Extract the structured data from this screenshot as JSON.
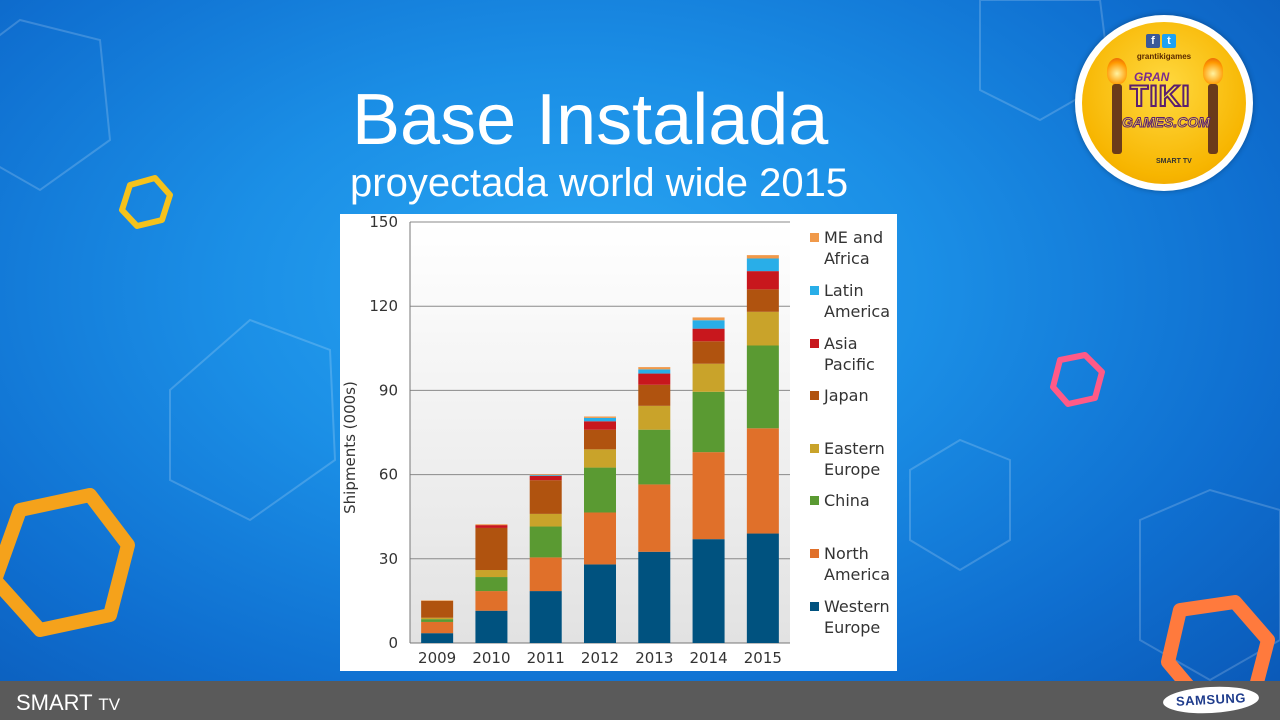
{
  "slide": {
    "title": "Base Instalada",
    "subtitle": "proyectada world wide 2015"
  },
  "badge": {
    "social_fb": "f",
    "social_tw": "t",
    "handle": "grantikigames",
    "logo_line1": "GRAN",
    "logo_line2": "TIKI",
    "logo_line3": "GAMES.COM",
    "platform_text": "SMART TV"
  },
  "footer": {
    "brand_left": "SMART",
    "brand_left_suffix": "TV",
    "brand_right": "SAMSUNG"
  },
  "colors": {
    "western_europe": "#00527f",
    "north_america": "#e0702a",
    "china": "#5a9a32",
    "eastern_europe": "#c9a32a",
    "japan": "#b0530f",
    "asia_pacific": "#c8171d",
    "latin_america": "#29aee8",
    "me_africa": "#f0994a"
  },
  "chart_data": {
    "type": "bar",
    "stacked": true,
    "categories": [
      "2009",
      "2010",
      "2011",
      "2012",
      "2013",
      "2014",
      "2015"
    ],
    "ylabel": "Shipments (000s)",
    "ylim": [
      0,
      150
    ],
    "yticks": [
      0,
      30,
      60,
      90,
      120,
      150
    ],
    "grid": true,
    "legend_position": "right",
    "series": [
      {
        "name": "Western Europe",
        "color_key": "western_europe",
        "values": [
          3.5,
          11.5,
          18.5,
          28,
          32.5,
          37,
          39
        ]
      },
      {
        "name": "North America",
        "color_key": "north_america",
        "values": [
          4,
          7,
          12,
          18.5,
          24,
          31,
          37.5
        ]
      },
      {
        "name": "China",
        "color_key": "china",
        "values": [
          1,
          5,
          11,
          16,
          19.5,
          21.5,
          29.5
        ]
      },
      {
        "name": "Eastern Europe",
        "color_key": "eastern_europe",
        "values": [
          0.5,
          2.5,
          4.5,
          6.5,
          8.5,
          10,
          12
        ]
      },
      {
        "name": "Japan",
        "color_key": "japan",
        "values": [
          6,
          15,
          12,
          7,
          7.5,
          8,
          8
        ]
      },
      {
        "name": "Asia Pacific",
        "color_key": "asia_pacific",
        "values": [
          0,
          1,
          1.5,
          3,
          4,
          4.5,
          6.5
        ]
      },
      {
        "name": "Latin America",
        "color_key": "latin_america",
        "values": [
          0,
          0,
          0.3,
          1.2,
          1.5,
          3,
          4.5
        ]
      },
      {
        "name": "ME and Africa",
        "color_key": "me_africa",
        "values": [
          0.2,
          0.3,
          0.3,
          0.5,
          0.8,
          1,
          1.2
        ]
      }
    ],
    "legend": [
      {
        "lines": [
          "ME and",
          "Africa"
        ],
        "color_key": "me_africa"
      },
      {
        "lines": [
          "Latin",
          "America"
        ],
        "color_key": "latin_america"
      },
      {
        "lines": [
          "Asia",
          "Pacific"
        ],
        "color_key": "asia_pacific"
      },
      {
        "lines": [
          "Japan"
        ],
        "color_key": "japan"
      },
      {
        "lines": [
          "Eastern",
          "Europe"
        ],
        "color_key": "eastern_europe"
      },
      {
        "lines": [
          "China"
        ],
        "color_key": "china"
      },
      {
        "lines": [
          "North",
          "America"
        ],
        "color_key": "north_america"
      },
      {
        "lines": [
          "Western",
          "Europe"
        ],
        "color_key": "western_europe"
      }
    ]
  }
}
